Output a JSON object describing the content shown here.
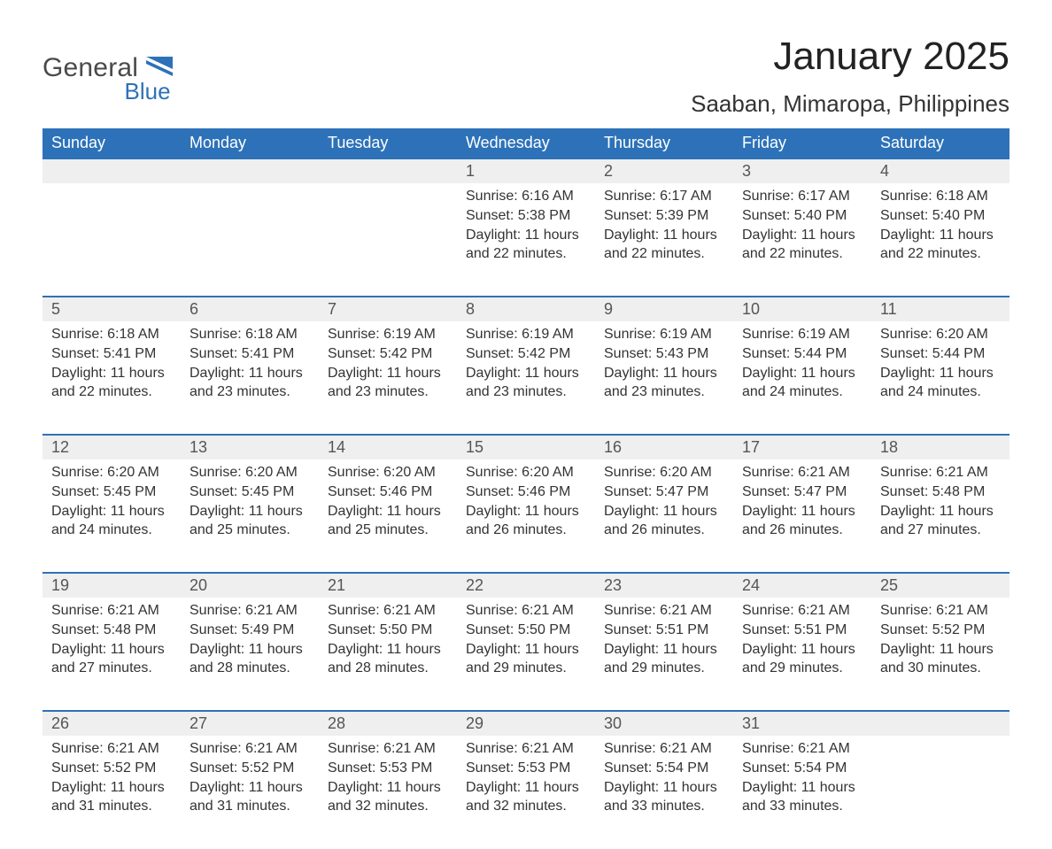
{
  "logo": {
    "general": "General",
    "blue": "Blue",
    "flag_color": "#2d72b8"
  },
  "title": "January 2025",
  "location": "Saaban, Mimaropa, Philippines",
  "columns": [
    "Sunday",
    "Monday",
    "Tuesday",
    "Wednesday",
    "Thursday",
    "Friday",
    "Saturday"
  ],
  "colors": {
    "header_bg": "#2d72b8",
    "header_text": "#ffffff",
    "daynum_bg": "#efefef",
    "row_border": "#2d72b8",
    "text": "#333333",
    "title_text": "#222222"
  },
  "fonts": {
    "title_size_pt": 33,
    "location_size_pt": 20,
    "header_size_pt": 14,
    "daynum_size_pt": 14,
    "body_size_pt": 12
  },
  "weeks": [
    [
      null,
      null,
      null,
      {
        "n": "1",
        "sunrise": "Sunrise: 6:16 AM",
        "sunset": "Sunset: 5:38 PM",
        "daylight": "Daylight: 11 hours and 22 minutes."
      },
      {
        "n": "2",
        "sunrise": "Sunrise: 6:17 AM",
        "sunset": "Sunset: 5:39 PM",
        "daylight": "Daylight: 11 hours and 22 minutes."
      },
      {
        "n": "3",
        "sunrise": "Sunrise: 6:17 AM",
        "sunset": "Sunset: 5:40 PM",
        "daylight": "Daylight: 11 hours and 22 minutes."
      },
      {
        "n": "4",
        "sunrise": "Sunrise: 6:18 AM",
        "sunset": "Sunset: 5:40 PM",
        "daylight": "Daylight: 11 hours and 22 minutes."
      }
    ],
    [
      {
        "n": "5",
        "sunrise": "Sunrise: 6:18 AM",
        "sunset": "Sunset: 5:41 PM",
        "daylight": "Daylight: 11 hours and 22 minutes."
      },
      {
        "n": "6",
        "sunrise": "Sunrise: 6:18 AM",
        "sunset": "Sunset: 5:41 PM",
        "daylight": "Daylight: 11 hours and 23 minutes."
      },
      {
        "n": "7",
        "sunrise": "Sunrise: 6:19 AM",
        "sunset": "Sunset: 5:42 PM",
        "daylight": "Daylight: 11 hours and 23 minutes."
      },
      {
        "n": "8",
        "sunrise": "Sunrise: 6:19 AM",
        "sunset": "Sunset: 5:42 PM",
        "daylight": "Daylight: 11 hours and 23 minutes."
      },
      {
        "n": "9",
        "sunrise": "Sunrise: 6:19 AM",
        "sunset": "Sunset: 5:43 PM",
        "daylight": "Daylight: 11 hours and 23 minutes."
      },
      {
        "n": "10",
        "sunrise": "Sunrise: 6:19 AM",
        "sunset": "Sunset: 5:44 PM",
        "daylight": "Daylight: 11 hours and 24 minutes."
      },
      {
        "n": "11",
        "sunrise": "Sunrise: 6:20 AM",
        "sunset": "Sunset: 5:44 PM",
        "daylight": "Daylight: 11 hours and 24 minutes."
      }
    ],
    [
      {
        "n": "12",
        "sunrise": "Sunrise: 6:20 AM",
        "sunset": "Sunset: 5:45 PM",
        "daylight": "Daylight: 11 hours and 24 minutes."
      },
      {
        "n": "13",
        "sunrise": "Sunrise: 6:20 AM",
        "sunset": "Sunset: 5:45 PM",
        "daylight": "Daylight: 11 hours and 25 minutes."
      },
      {
        "n": "14",
        "sunrise": "Sunrise: 6:20 AM",
        "sunset": "Sunset: 5:46 PM",
        "daylight": "Daylight: 11 hours and 25 minutes."
      },
      {
        "n": "15",
        "sunrise": "Sunrise: 6:20 AM",
        "sunset": "Sunset: 5:46 PM",
        "daylight": "Daylight: 11 hours and 26 minutes."
      },
      {
        "n": "16",
        "sunrise": "Sunrise: 6:20 AM",
        "sunset": "Sunset: 5:47 PM",
        "daylight": "Daylight: 11 hours and 26 minutes."
      },
      {
        "n": "17",
        "sunrise": "Sunrise: 6:21 AM",
        "sunset": "Sunset: 5:47 PM",
        "daylight": "Daylight: 11 hours and 26 minutes."
      },
      {
        "n": "18",
        "sunrise": "Sunrise: 6:21 AM",
        "sunset": "Sunset: 5:48 PM",
        "daylight": "Daylight: 11 hours and 27 minutes."
      }
    ],
    [
      {
        "n": "19",
        "sunrise": "Sunrise: 6:21 AM",
        "sunset": "Sunset: 5:48 PM",
        "daylight": "Daylight: 11 hours and 27 minutes."
      },
      {
        "n": "20",
        "sunrise": "Sunrise: 6:21 AM",
        "sunset": "Sunset: 5:49 PM",
        "daylight": "Daylight: 11 hours and 28 minutes."
      },
      {
        "n": "21",
        "sunrise": "Sunrise: 6:21 AM",
        "sunset": "Sunset: 5:50 PM",
        "daylight": "Daylight: 11 hours and 28 minutes."
      },
      {
        "n": "22",
        "sunrise": "Sunrise: 6:21 AM",
        "sunset": "Sunset: 5:50 PM",
        "daylight": "Daylight: 11 hours and 29 minutes."
      },
      {
        "n": "23",
        "sunrise": "Sunrise: 6:21 AM",
        "sunset": "Sunset: 5:51 PM",
        "daylight": "Daylight: 11 hours and 29 minutes."
      },
      {
        "n": "24",
        "sunrise": "Sunrise: 6:21 AM",
        "sunset": "Sunset: 5:51 PM",
        "daylight": "Daylight: 11 hours and 29 minutes."
      },
      {
        "n": "25",
        "sunrise": "Sunrise: 6:21 AM",
        "sunset": "Sunset: 5:52 PM",
        "daylight": "Daylight: 11 hours and 30 minutes."
      }
    ],
    [
      {
        "n": "26",
        "sunrise": "Sunrise: 6:21 AM",
        "sunset": "Sunset: 5:52 PM",
        "daylight": "Daylight: 11 hours and 31 minutes."
      },
      {
        "n": "27",
        "sunrise": "Sunrise: 6:21 AM",
        "sunset": "Sunset: 5:52 PM",
        "daylight": "Daylight: 11 hours and 31 minutes."
      },
      {
        "n": "28",
        "sunrise": "Sunrise: 6:21 AM",
        "sunset": "Sunset: 5:53 PM",
        "daylight": "Daylight: 11 hours and 32 minutes."
      },
      {
        "n": "29",
        "sunrise": "Sunrise: 6:21 AM",
        "sunset": "Sunset: 5:53 PM",
        "daylight": "Daylight: 11 hours and 32 minutes."
      },
      {
        "n": "30",
        "sunrise": "Sunrise: 6:21 AM",
        "sunset": "Sunset: 5:54 PM",
        "daylight": "Daylight: 11 hours and 33 minutes."
      },
      {
        "n": "31",
        "sunrise": "Sunrise: 6:21 AM",
        "sunset": "Sunset: 5:54 PM",
        "daylight": "Daylight: 11 hours and 33 minutes."
      },
      null
    ]
  ]
}
